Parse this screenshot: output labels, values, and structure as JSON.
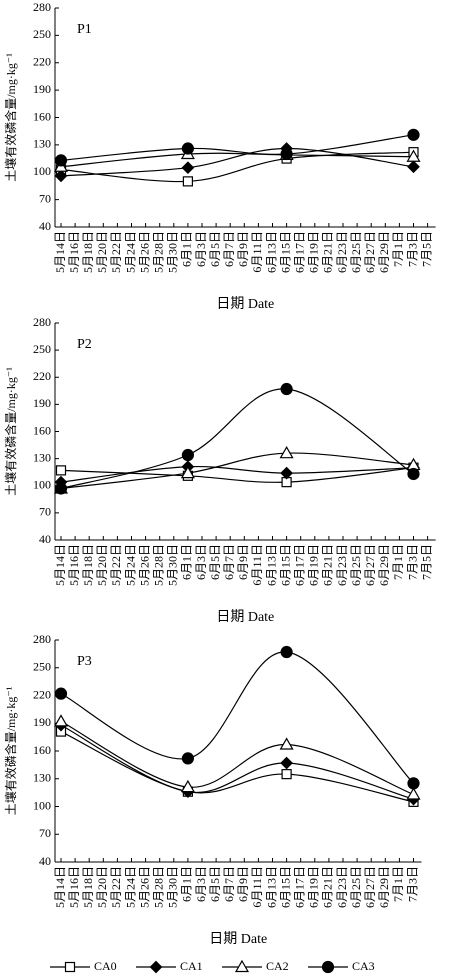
{
  "chart_data": [
    {
      "type": "line",
      "title": "P1",
      "ylabel": "土壤有效磷含量/mg·kg⁻¹",
      "xlabel": "日期 Date",
      "xticks": [
        "5月14日",
        "5月16日",
        "5月18日",
        "5月20日",
        "5月22日",
        "5月24日",
        "5月26日",
        "5月28日",
        "5月30日",
        "6月1日",
        "6月3日",
        "6月5日",
        "6月7日",
        "6月9日",
        "6月11日",
        "6月13日",
        "6月15日",
        "6月17日",
        "6月19日",
        "6月21日",
        "6月23日",
        "6月25日",
        "6月27日",
        "6月29日",
        "7月1日",
        "7月3日",
        "7月5日"
      ],
      "x": [
        "5月14日",
        "6月1日",
        "6月15日",
        "7月3日"
      ],
      "ylim": [
        40,
        280
      ],
      "yticks": [
        40,
        70,
        100,
        130,
        160,
        190,
        220,
        250,
        280
      ],
      "series": [
        {
          "name": "CA0",
          "color": "#000000",
          "marker": "square-open",
          "values": [
            103,
            90,
            115,
            122
          ]
        },
        {
          "name": "CA1",
          "color": "#000000",
          "marker": "diamond-filled",
          "values": [
            96,
            105,
            126,
            106
          ]
        },
        {
          "name": "CA2",
          "color": "#000000",
          "marker": "triangle-open",
          "values": [
            106,
            120,
            119,
            117
          ]
        },
        {
          "name": "CA3",
          "color": "#000000",
          "marker": "circle-filled",
          "values": [
            113,
            126,
            120,
            141
          ]
        }
      ]
    },
    {
      "type": "line",
      "title": "P2",
      "ylabel": "土壤有效磷含量/mg·kg⁻¹",
      "xlabel": "日期 Date",
      "xticks": [
        "5月14日",
        "5月16日",
        "5月18日",
        "5月20日",
        "5月22日",
        "5月24日",
        "5月26日",
        "5月28日",
        "5月30日",
        "6月1日",
        "6月3日",
        "6月5日",
        "6月7日",
        "6月9日",
        "6月11日",
        "6月13日",
        "6月15日",
        "6月17日",
        "6月19日",
        "6月21日",
        "6月23日",
        "6月25日",
        "6月27日",
        "6月29日",
        "7月1日",
        "7月3日",
        "7月5日"
      ],
      "x": [
        "5月14日",
        "6月1日",
        "6月15日",
        "7月3日"
      ],
      "ylim": [
        40,
        280
      ],
      "yticks": [
        40,
        70,
        100,
        130,
        160,
        190,
        220,
        250,
        280
      ],
      "series": [
        {
          "name": "CA0",
          "color": "#000000",
          "marker": "square-open",
          "values": [
            117,
            111,
            104,
            120
          ]
        },
        {
          "name": "CA1",
          "color": "#000000",
          "marker": "diamond-filled",
          "values": [
            104,
            121,
            114,
            120
          ]
        },
        {
          "name": "CA2",
          "color": "#000000",
          "marker": "triangle-open",
          "values": [
            97,
            114,
            136,
            123
          ]
        },
        {
          "name": "CA3",
          "color": "#000000",
          "marker": "circle-filled",
          "values": [
            97,
            134,
            207,
            113
          ]
        }
      ]
    },
    {
      "type": "line",
      "title": "P3",
      "ylabel": "土壤有效磷含量/mg·kg⁻¹",
      "xlabel": "日期 Date",
      "xticks": [
        "5月14日",
        "5月16日",
        "5月18日",
        "5月20日",
        "5月22日",
        "5月24日",
        "5月26日",
        "5月28日",
        "5月30日",
        "6月1日",
        "6月3日",
        "6月5日",
        "6月7日",
        "6月9日",
        "6月11日",
        "6月13日",
        "6月15日",
        "6月17日",
        "6月19日",
        "6月21日",
        "6月23日",
        "6月25日",
        "6月27日",
        "6月29日",
        "7月1日",
        "7月3日"
      ],
      "x": [
        "5月14日",
        "6月1日",
        "6月15日",
        "7月3日"
      ],
      "ylim": [
        40,
        280
      ],
      "yticks": [
        40,
        70,
        100,
        130,
        160,
        190,
        220,
        250,
        280
      ],
      "legend": "bottom",
      "series": [
        {
          "name": "CA0",
          "color": "#000000",
          "marker": "square-open",
          "values": [
            181,
            116,
            135,
            105
          ]
        },
        {
          "name": "CA1",
          "color": "#000000",
          "marker": "diamond-filled",
          "values": [
            188,
            116,
            147,
            108
          ]
        },
        {
          "name": "CA2",
          "color": "#000000",
          "marker": "triangle-open",
          "values": [
            192,
            121,
            167,
            113
          ]
        },
        {
          "name": "CA3",
          "color": "#000000",
          "marker": "circle-filled",
          "values": [
            222,
            152,
            267,
            125
          ]
        }
      ]
    }
  ]
}
